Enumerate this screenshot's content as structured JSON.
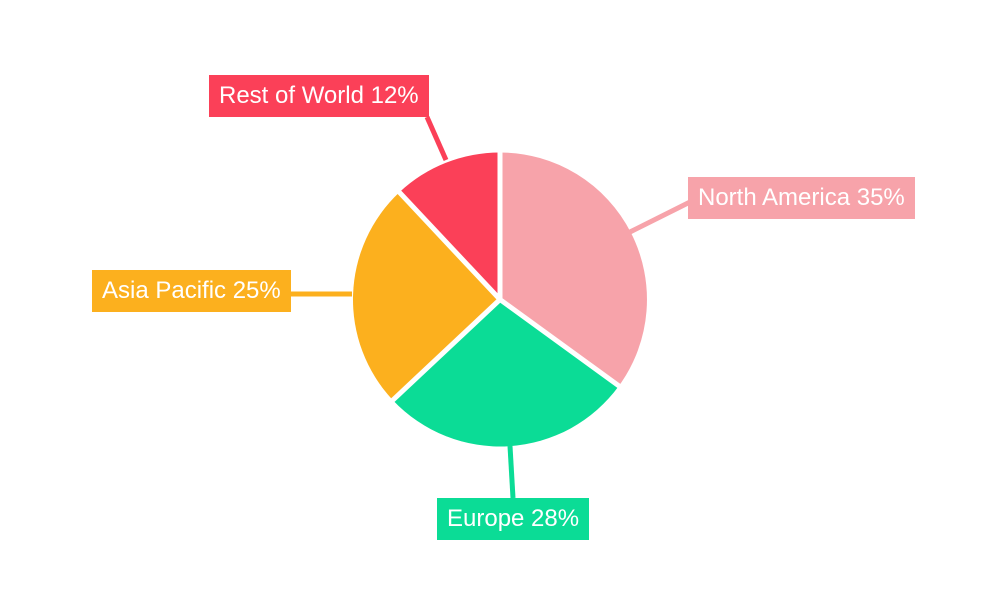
{
  "chart_data": {
    "type": "pie",
    "title": "",
    "background": "#ffffff",
    "direction": "clockwise",
    "start_angle_deg": 0,
    "gridlines": false,
    "legend": "callout-boxes-with-leader-lines",
    "label_text_color": "#ffffff",
    "separator_color": "#ffffff",
    "slices": [
      {
        "label": "North America",
        "value": 35,
        "unit": "%",
        "color": "#F7A3AA",
        "display": "North America 35%"
      },
      {
        "label": "Europe",
        "value": 28,
        "unit": "%",
        "color": "#0BDC96",
        "display": "Europe 28%"
      },
      {
        "label": "Asia Pacific",
        "value": 25,
        "unit": "%",
        "color": "#FCB01E",
        "display": "Asia Pacific 25%"
      },
      {
        "label": "Rest of World",
        "value": 12,
        "unit": "%",
        "color": "#FB4058",
        "display": "Rest of World 12%"
      }
    ]
  }
}
